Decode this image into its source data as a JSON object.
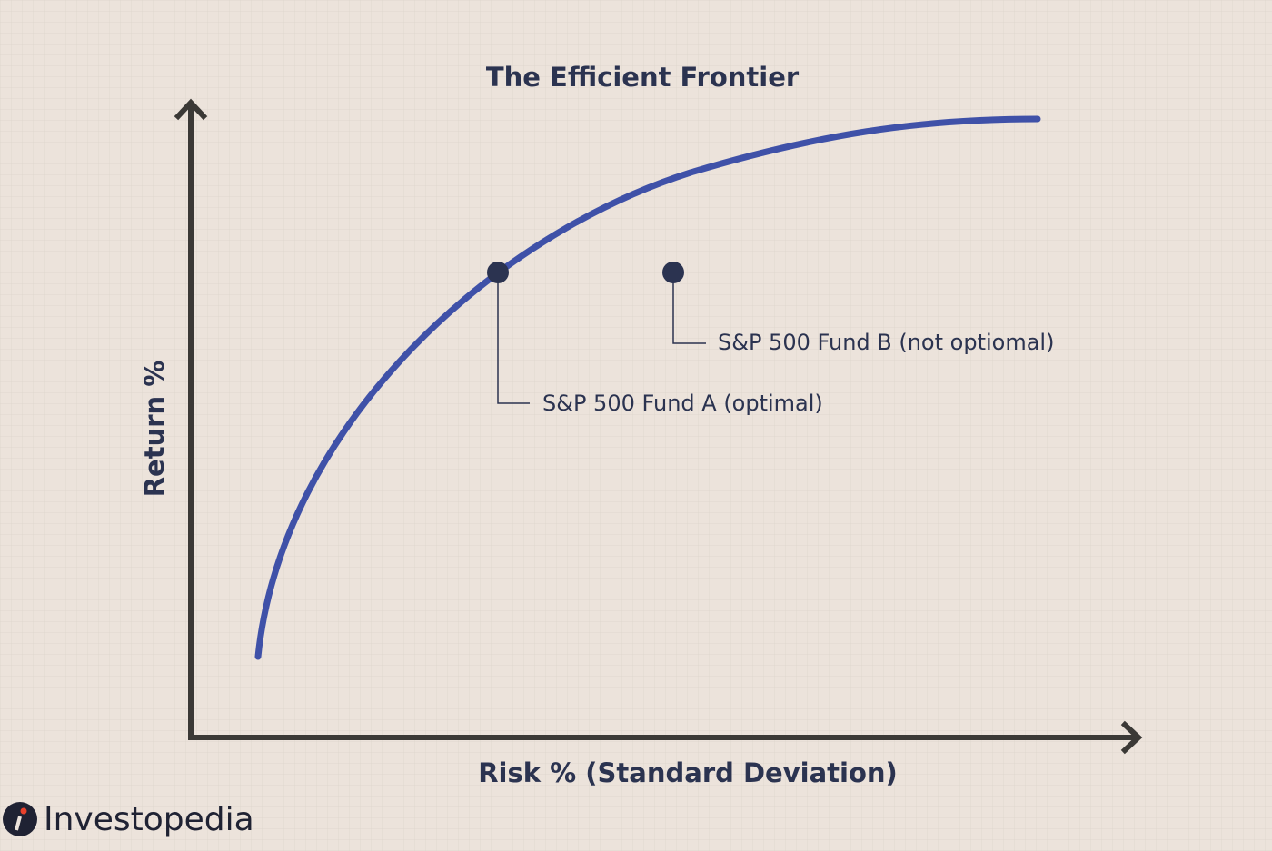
{
  "title": "The Efficient Frontier",
  "y_axis_label": "Return %",
  "x_axis_label": "Risk % (Standard Deviation)",
  "annotations": [
    "S&P 500 Fund A (optimal)",
    "S&P 500 Fund B (not optiomal)"
  ],
  "brand": "Investopedia"
}
